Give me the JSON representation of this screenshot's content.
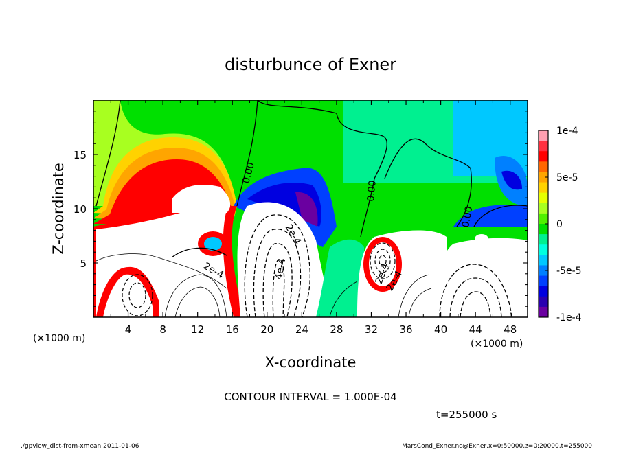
{
  "chart_data": {
    "type": "heatmap",
    "title": "disturbunce of Exner",
    "xlabel": "X-coordinate",
    "ylabel": "Z-coordinate",
    "x_unit_note": "(×1000 m)",
    "y_unit_note": "(×1000 m)",
    "xlim": [
      0,
      50
    ],
    "ylim": [
      0,
      20
    ],
    "x_ticks": [
      4,
      8,
      12,
      16,
      20,
      24,
      28,
      32,
      36,
      40,
      44,
      48
    ],
    "y_ticks": [
      5,
      10,
      15
    ],
    "colorbar": {
      "range": [
        -0.0001,
        0.0001
      ],
      "tick_labels": [
        "1e-4",
        "5e-5",
        "0",
        "-5e-5",
        "-1e-4"
      ],
      "tick_values": [
        0.0001,
        5e-05,
        0,
        -5e-05,
        -0.0001
      ],
      "colors": [
        "#ff9fb0",
        "#ff3040",
        "#ff0000",
        "#ff6600",
        "#ffa500",
        "#ffd200",
        "#e6ff00",
        "#a8ff20",
        "#50f000",
        "#00e000",
        "#00f090",
        "#00ffe0",
        "#00c8ff",
        "#0080ff",
        "#0040ff",
        "#0000e0",
        "#2a00b0",
        "#6a00a0"
      ]
    },
    "contour_labels": [
      "0.00",
      "0.00",
      "0.00",
      "2e-4",
      "2e-4",
      "4e-4",
      "2e-4",
      "2e-4"
    ],
    "contour_interval_text": "CONTOUR INTERVAL = 1.000E-04",
    "time_text": "t=255000 s",
    "footer_left": "./gpview_dist-from-xmean  2011-01-06",
    "footer_right": "MarsCond_Exner.nc@Exner,x=0:50000,z=0:20000,t=255000"
  }
}
